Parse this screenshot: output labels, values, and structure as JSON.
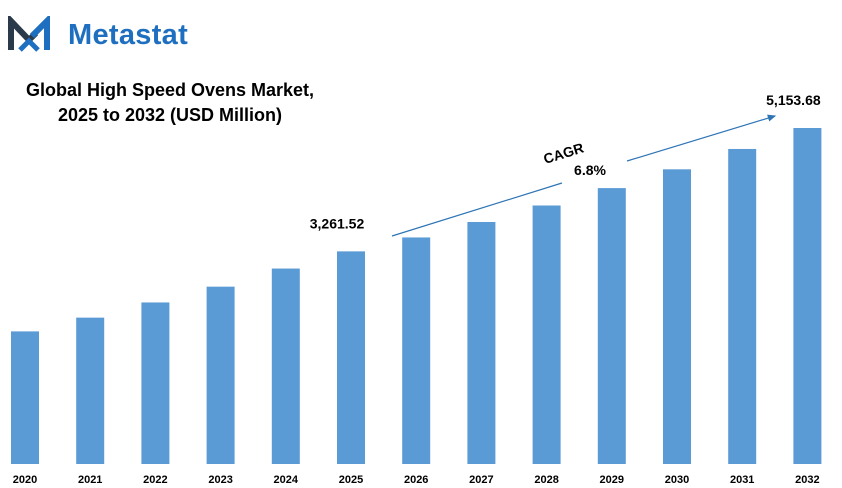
{
  "brand": {
    "name": "Metastat",
    "logo_icon": "metastat-m-logo-icon",
    "accent": "#1f6fc0"
  },
  "title_lines": [
    "Global High Speed Ovens Market,",
    "2025 to 2032 (USD Million)"
  ],
  "cagr": {
    "label": "CAGR",
    "value": "6.8%"
  },
  "chart_data": {
    "type": "bar",
    "title": "Global High Speed Ovens Market, 2025 to 2032 (USD Million)",
    "categories": [
      "2020",
      "2021",
      "2022",
      "2023",
      "2024",
      "2025",
      "2026",
      "2027",
      "2028",
      "2029",
      "2030",
      "2031",
      "2032"
    ],
    "values": [
      2034,
      2245,
      2478,
      2720,
      2998,
      3261.52,
      3475,
      3712,
      3965,
      4232,
      4520,
      4832,
      5153.68
    ],
    "data_labels": [
      {
        "category": "2025",
        "text": "3,261.52"
      },
      {
        "category": "2032",
        "text": "5,153.68"
      }
    ],
    "bar_color": "#5b9bd5",
    "xlabel": "",
    "ylabel": "",
    "grid": false,
    "legend": "none"
  }
}
